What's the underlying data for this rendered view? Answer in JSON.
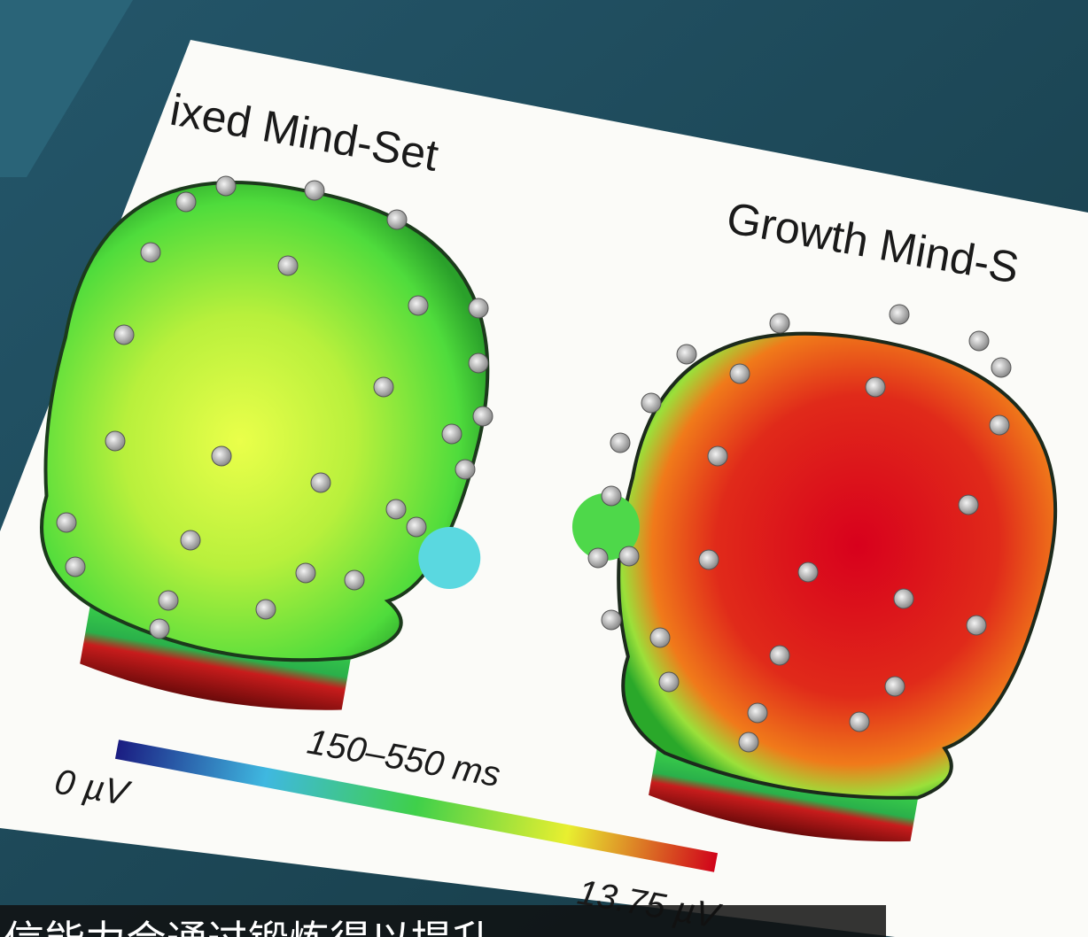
{
  "figure": {
    "left_title": "ixed Mind-Set",
    "right_title": "Growth Mind-S",
    "time_window": "150–550 ms",
    "scale_min_label": "0 µV",
    "scale_max_label": "13.75 µV"
  },
  "subtitle": "信能力会通过锻炼得以提升"
}
